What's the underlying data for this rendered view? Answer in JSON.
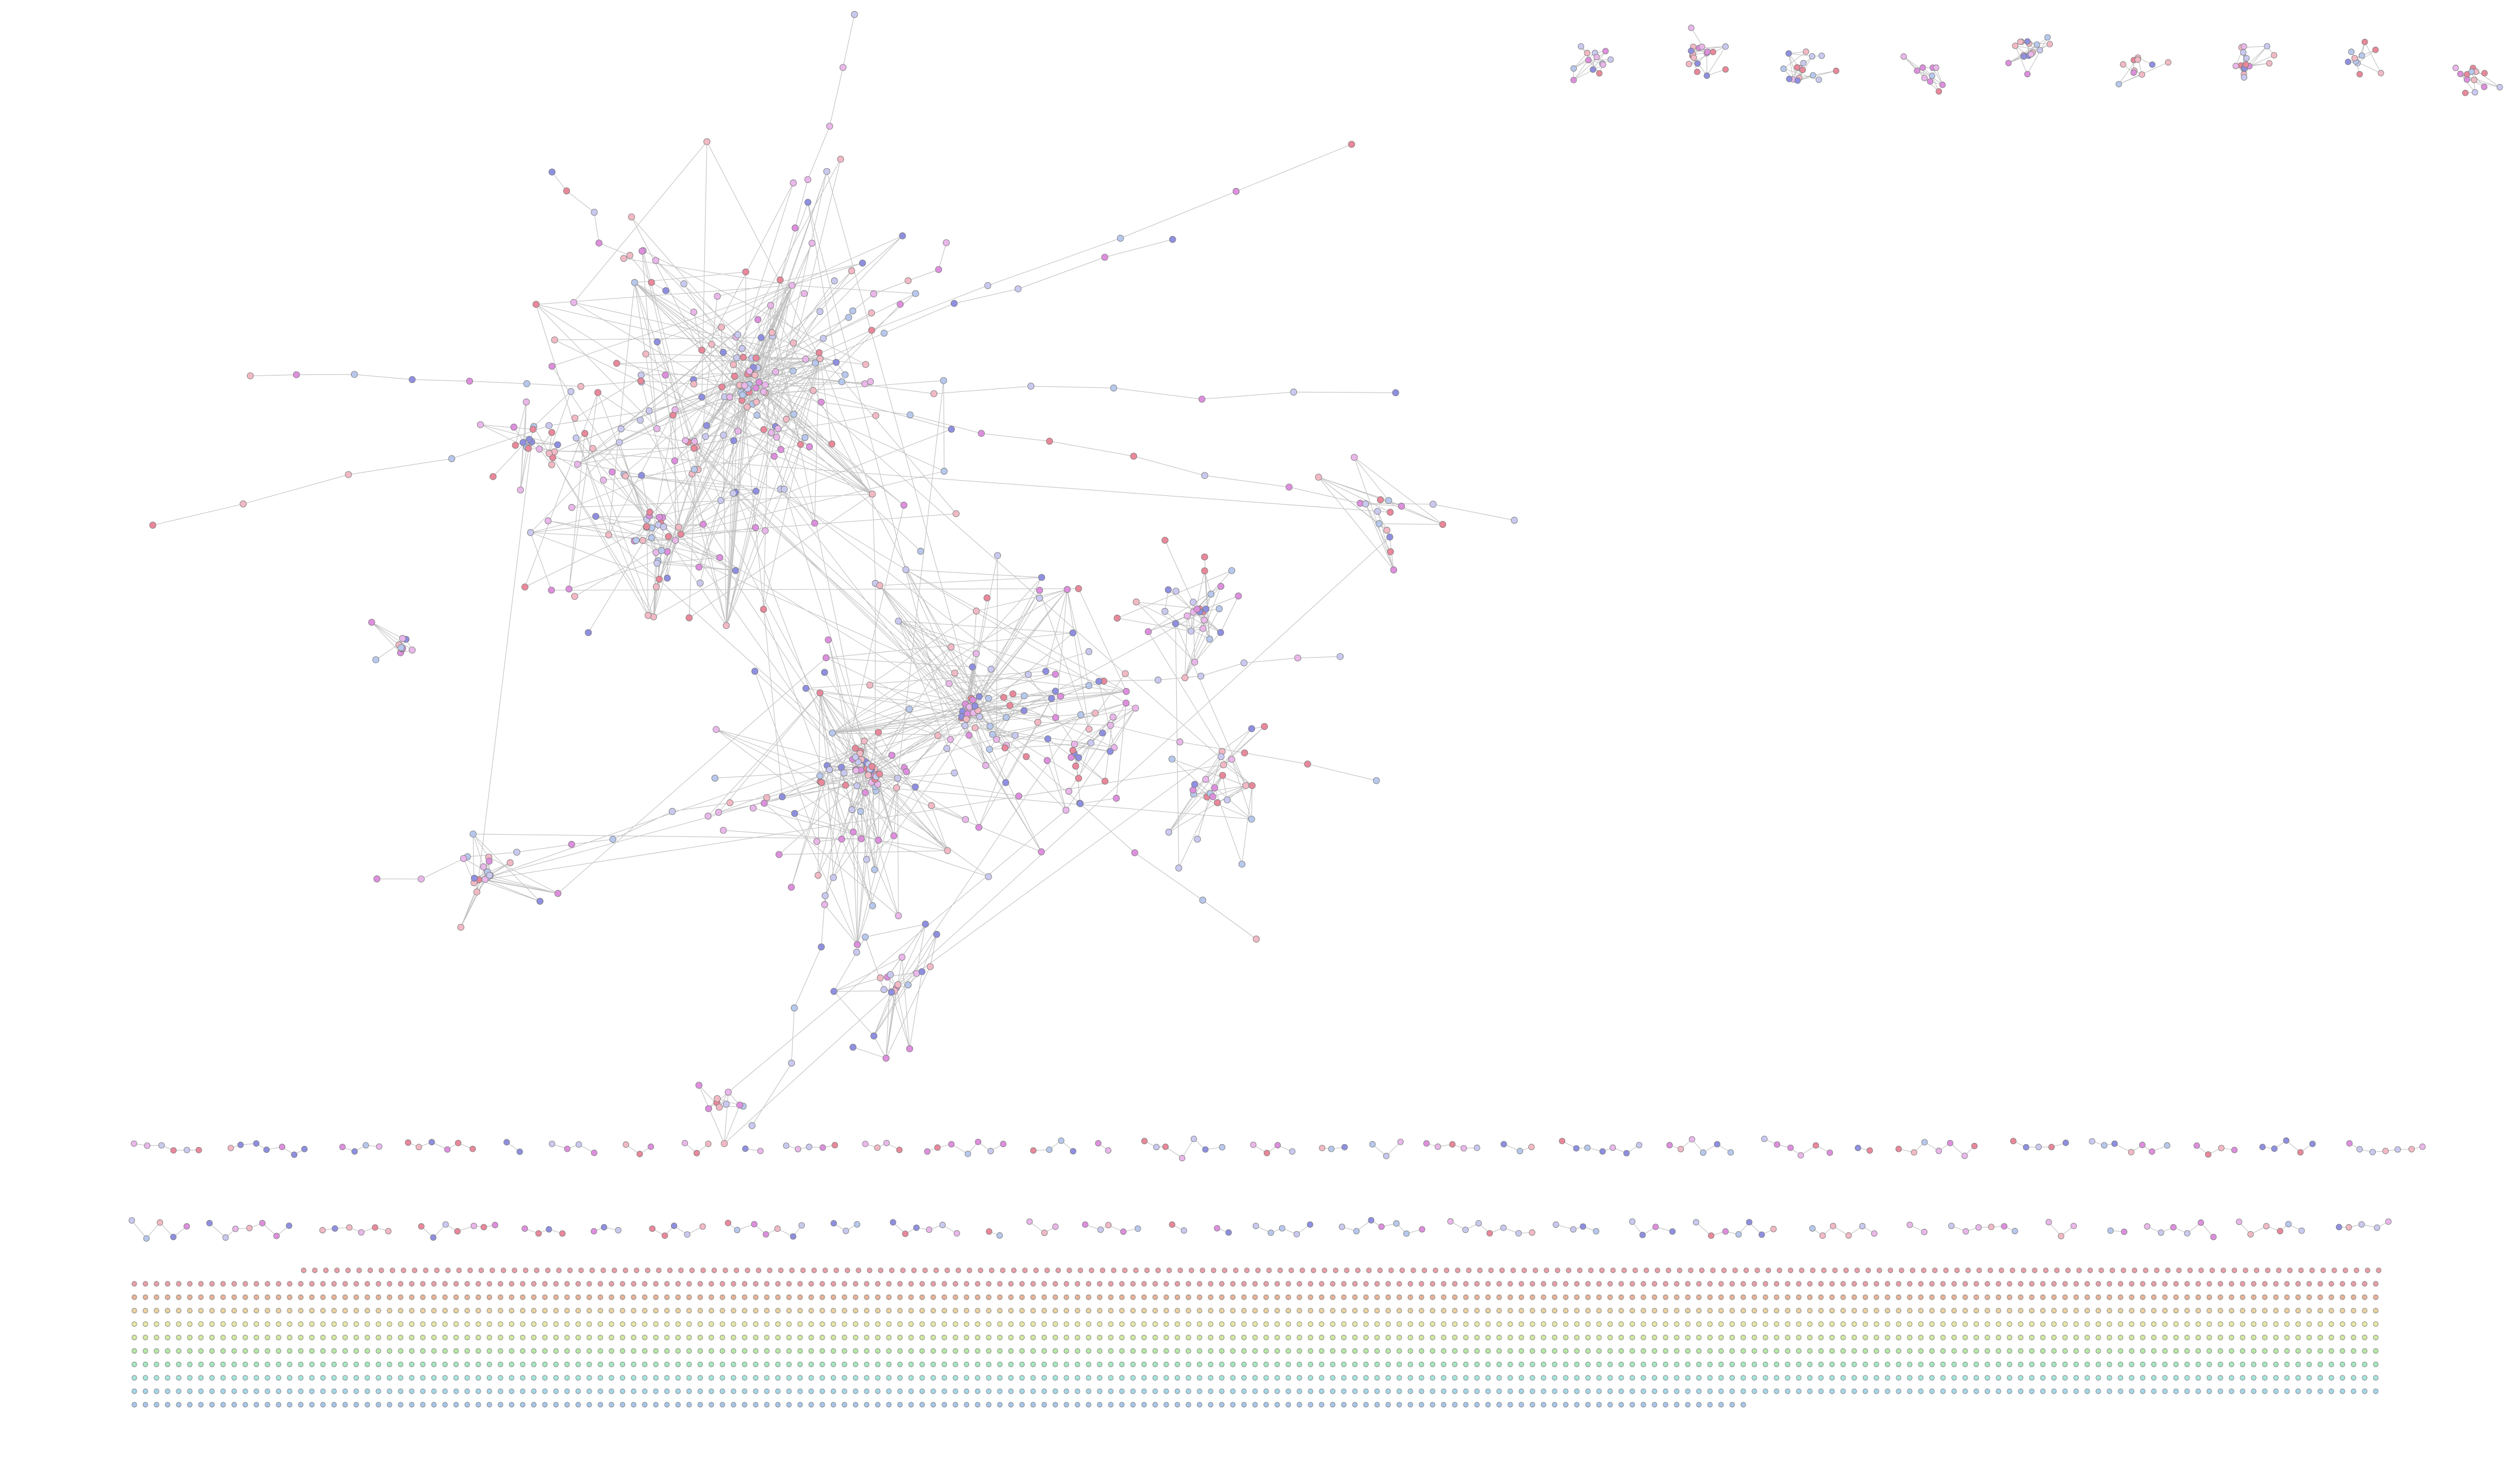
{
  "diagram": {
    "type": "network-graph",
    "labels_legible": false,
    "edge_color": "#8c8c8c",
    "node_stroke": "#7a7a7a",
    "cluster_palette": [
      "#8f8fe0",
      "#c9c9f0",
      "#dd8fdd",
      "#e9b7e9",
      "#e8889a",
      "#f1b9c4",
      "#b7c8ec"
    ],
    "grid_palette": [
      "#e8a0a8",
      "#e9b49a",
      "#ead3a2",
      "#e6e8a6",
      "#d2eaa2",
      "#b6eaa6",
      "#a6e8c0",
      "#a6e6de",
      "#a6d7ea",
      "#a8c6ea"
    ],
    "components": {
      "main_network": {
        "shown": true
      },
      "top_right_clusters": {
        "shown": true,
        "groups": 9
      },
      "small_component_rows": {
        "shown": true,
        "rows": 2
      },
      "isolated_node_grid": {
        "shown": true,
        "rows": 11
      }
    }
  }
}
